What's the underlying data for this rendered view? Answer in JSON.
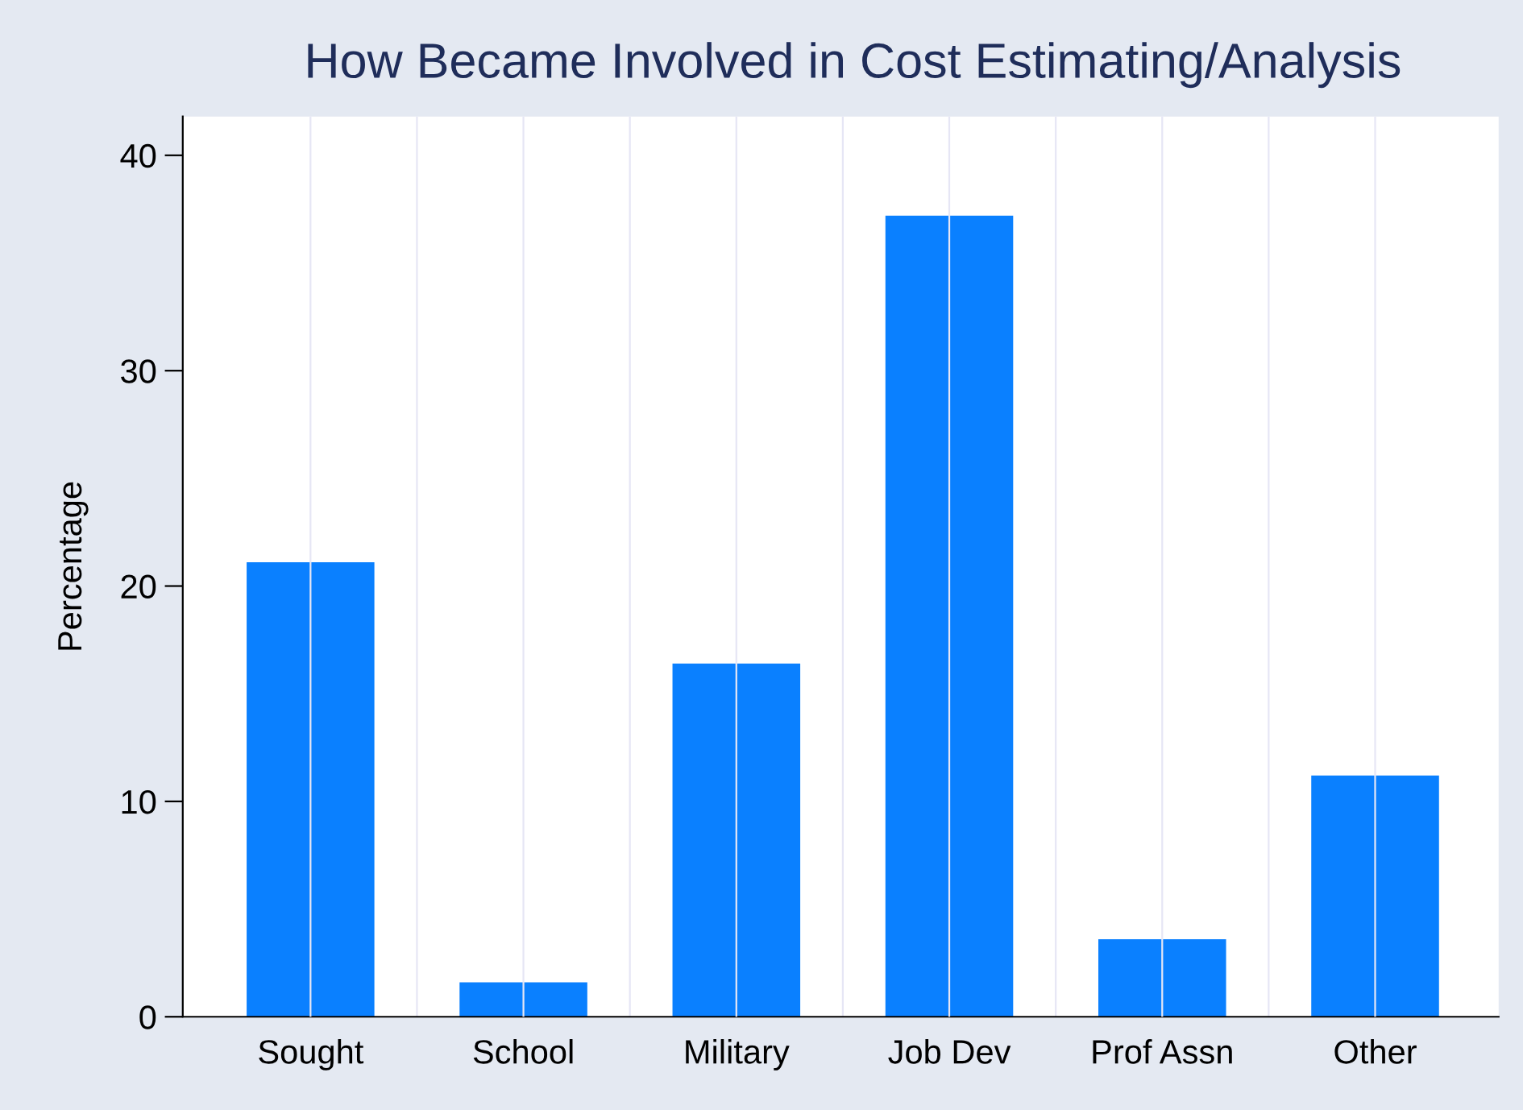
{
  "chart_data": {
    "type": "bar",
    "title": "How Became Involved in Cost Estimating/Analysis",
    "ylabel": "Percentage",
    "categories": [
      "Sought",
      "School",
      "Military",
      "Job Dev",
      "Prof Assn",
      "Other"
    ],
    "values": [
      21.1,
      1.6,
      16.4,
      37.2,
      3.6,
      11.2
    ],
    "color": "#0a80ff",
    "ylim": [
      0,
      41.8
    ],
    "yticks": [
      0,
      10,
      20,
      30,
      40
    ],
    "grid": "x"
  }
}
